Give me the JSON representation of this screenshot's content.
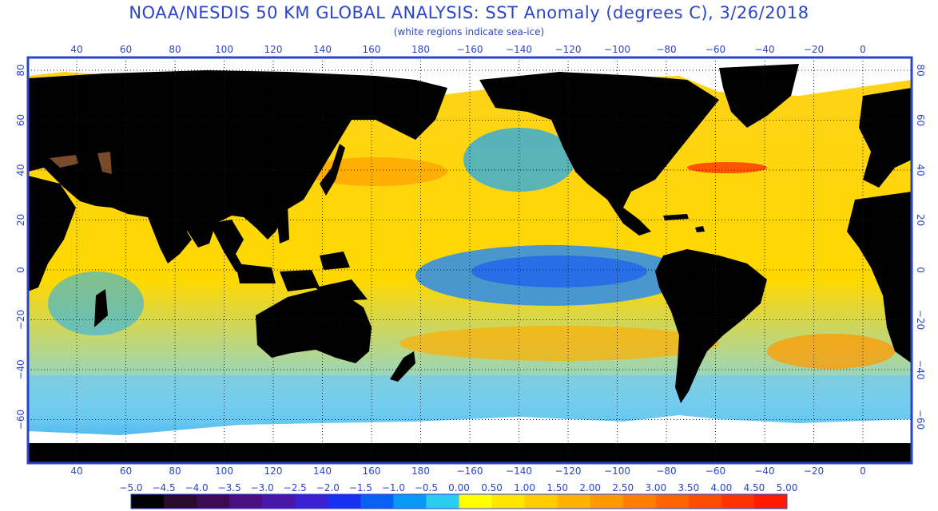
{
  "header": {
    "title": "NOAA/NESDIS 50 KM GLOBAL ANALYSIS: SST Anomaly (degrees C), 3/26/2018",
    "subtitle": "(white regions indicate sea-ice)"
  },
  "map": {
    "longitude_labels": [
      "40",
      "60",
      "80",
      "100",
      "120",
      "140",
      "160",
      "180",
      "−160",
      "−140",
      "−120",
      "−100",
      "−80",
      "−60",
      "−40",
      "−20",
      "0"
    ],
    "latitude_labels": [
      "80",
      "60",
      "40",
      "20",
      "0",
      "−20",
      "−40",
      "−60"
    ],
    "right_latitude_labels": [
      "80",
      "60",
      "40",
      "20",
      "0",
      "−20",
      "−40",
      "−60"
    ],
    "colors": {
      "frame": "#2b45c8",
      "land": "#000000",
      "sea_ice": "#ffffff",
      "grid": "#1a1a1a"
    }
  },
  "colorbar": {
    "labels": [
      "−5.0",
      "−4.5",
      "−4.0",
      "−3.5",
      "−3.0",
      "−2.5",
      "−2.0",
      "−1.5",
      "−1.0",
      "−0.5",
      "0.00",
      "0.50",
      "1.00",
      "1.50",
      "2.00",
      "2.50",
      "3.00",
      "3.50",
      "4.00",
      "4.50",
      "5.00"
    ],
    "colors": [
      "#000000",
      "#2a0a2e",
      "#3c0a55",
      "#4a0f80",
      "#4a18a8",
      "#3a20d0",
      "#1a30f0",
      "#0a60f5",
      "#0a98f5",
      "#2acdf0",
      "#ffff00",
      "#ffe600",
      "#ffcc00",
      "#ffb300",
      "#ff9900",
      "#ff8000",
      "#ff6600",
      "#ff4d00",
      "#ff3300",
      "#ff1a00"
    ]
  }
}
